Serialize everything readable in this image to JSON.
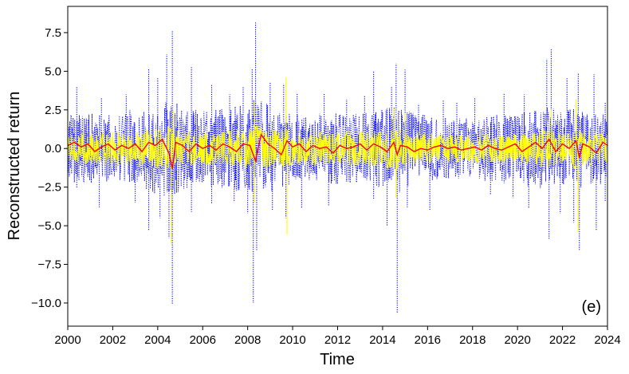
{
  "chart_data": {
    "type": "line",
    "xlabel": "Time",
    "ylabel": "Reconstructed return",
    "annotation": "(e)",
    "xlim": [
      2000,
      2024
    ],
    "ylim": [
      -11.5,
      9.2
    ],
    "x_ticks": [
      2000,
      2002,
      2004,
      2006,
      2008,
      2010,
      2012,
      2014,
      2016,
      2018,
      2020,
      2022,
      2024
    ],
    "x_tick_labels": [
      "2000",
      "2002",
      "2004",
      "2006",
      "2008",
      "2010",
      "2012",
      "2014",
      "2016",
      "2018",
      "2020",
      "2022",
      "2024"
    ],
    "y_ticks": [
      -10.0,
      -7.5,
      -5.0,
      -2.5,
      0.0,
      2.5,
      5.0,
      7.5
    ],
    "y_tick_labels": [
      "−10.0",
      "−7.5",
      "−5.0",
      "−2.5",
      "0.0",
      "2.5",
      "5.0",
      "7.5"
    ],
    "grid": false,
    "series": [
      {
        "color": "#0000ff",
        "style": "dotted",
        "envelope": {
          "x": [
            2000.0,
            2001.0,
            2002.0,
            2003.0,
            2004.0,
            2004.6,
            2005.0,
            2006.0,
            2007.0,
            2008.0,
            2008.3,
            2009.0,
            2009.7,
            2010.0,
            2011.0,
            2012.0,
            2013.0,
            2014.0,
            2014.6,
            2015.0,
            2016.0,
            2017.0,
            2018.0,
            2019.0,
            2020.0,
            2021.4,
            2022.0,
            2022.7,
            2023.0,
            2024.0
          ],
          "upper": [
            2.2,
            2.4,
            2.2,
            2.6,
            3.0,
            3.2,
            2.8,
            2.4,
            2.6,
            3.0,
            3.4,
            2.8,
            2.6,
            2.2,
            2.3,
            2.3,
            2.2,
            2.6,
            3.0,
            2.5,
            2.2,
            2.0,
            2.0,
            2.2,
            2.3,
            2.8,
            2.4,
            2.7,
            2.3,
            2.2
          ],
          "lower": [
            -2.2,
            -2.4,
            -2.2,
            -2.5,
            -3.0,
            -3.3,
            -2.8,
            -2.4,
            -2.6,
            -3.0,
            -3.5,
            -2.8,
            -2.6,
            -2.2,
            -2.2,
            -2.3,
            -2.2,
            -2.6,
            -3.1,
            -2.5,
            -2.1,
            -2.0,
            -2.0,
            -2.2,
            -2.3,
            -2.8,
            -2.5,
            -2.8,
            -2.4,
            -2.3
          ]
        },
        "spikes": [
          {
            "x": 2000.4,
            "y": 4.0
          },
          {
            "x": 2000.4,
            "y": -2.6
          },
          {
            "x": 2001.5,
            "y": 3.3
          },
          {
            "x": 2001.4,
            "y": -3.8
          },
          {
            "x": 2002.6,
            "y": 3.5
          },
          {
            "x": 2003.0,
            "y": -3.5
          },
          {
            "x": 2003.6,
            "y": 5.2
          },
          {
            "x": 2003.6,
            "y": -5.3
          },
          {
            "x": 2004.0,
            "y": 4.6
          },
          {
            "x": 2004.1,
            "y": -4.5
          },
          {
            "x": 2004.4,
            "y": 6.1
          },
          {
            "x": 2004.5,
            "y": -5.8
          },
          {
            "x": 2004.65,
            "y": 7.6
          },
          {
            "x": 2004.65,
            "y": -10.1
          },
          {
            "x": 2005.5,
            "y": 5.3
          },
          {
            "x": 2005.5,
            "y": -4.1
          },
          {
            "x": 2006.4,
            "y": 4.1
          },
          {
            "x": 2006.4,
            "y": -3.6
          },
          {
            "x": 2007.2,
            "y": 3.5
          },
          {
            "x": 2007.4,
            "y": -3.4
          },
          {
            "x": 2007.8,
            "y": 4.0
          },
          {
            "x": 2008.0,
            "y": -4.2
          },
          {
            "x": 2008.2,
            "y": 5.2
          },
          {
            "x": 2008.25,
            "y": -10.0
          },
          {
            "x": 2008.35,
            "y": 8.2
          },
          {
            "x": 2008.4,
            "y": -6.6
          },
          {
            "x": 2009.0,
            "y": 4.3
          },
          {
            "x": 2009.1,
            "y": -4.0
          },
          {
            "x": 2009.6,
            "y": 4.2
          },
          {
            "x": 2009.7,
            "y": -4.5
          },
          {
            "x": 2010.2,
            "y": 3.6
          },
          {
            "x": 2010.4,
            "y": -3.9
          },
          {
            "x": 2011.4,
            "y": 3.6
          },
          {
            "x": 2011.6,
            "y": -3.7
          },
          {
            "x": 2012.4,
            "y": 3.2
          },
          {
            "x": 2013.2,
            "y": 3.4
          },
          {
            "x": 2013.6,
            "y": 5.0
          },
          {
            "x": 2013.6,
            "y": -3.3
          },
          {
            "x": 2014.2,
            "y": -5.0
          },
          {
            "x": 2014.4,
            "y": 4.0
          },
          {
            "x": 2014.6,
            "y": 5.5
          },
          {
            "x": 2014.65,
            "y": -10.7
          },
          {
            "x": 2015.0,
            "y": 5.1
          },
          {
            "x": 2015.1,
            "y": -3.8
          },
          {
            "x": 2015.6,
            "y": 2.9
          },
          {
            "x": 2016.1,
            "y": -4.0
          },
          {
            "x": 2016.7,
            "y": 3.1
          },
          {
            "x": 2017.3,
            "y": 3.0
          },
          {
            "x": 2018.1,
            "y": 3.3
          },
          {
            "x": 2018.8,
            "y": -3.0
          },
          {
            "x": 2019.4,
            "y": 3.6
          },
          {
            "x": 2019.8,
            "y": -3.2
          },
          {
            "x": 2020.3,
            "y": 3.5
          },
          {
            "x": 2020.5,
            "y": -3.9
          },
          {
            "x": 2021.3,
            "y": 5.8
          },
          {
            "x": 2021.4,
            "y": -5.9
          },
          {
            "x": 2021.5,
            "y": 6.5
          },
          {
            "x": 2021.9,
            "y": -4.2
          },
          {
            "x": 2022.2,
            "y": 4.6
          },
          {
            "x": 2022.5,
            "y": -4.8
          },
          {
            "x": 2022.7,
            "y": 4.9
          },
          {
            "x": 2022.75,
            "y": -6.6
          },
          {
            "x": 2023.4,
            "y": 4.8
          },
          {
            "x": 2023.5,
            "y": -5.3
          },
          {
            "x": 2023.9,
            "y": 3.0
          },
          {
            "x": 2023.9,
            "y": -3.4
          }
        ]
      },
      {
        "color": "#ffff00",
        "style": "solid",
        "envelope": {
          "x": [
            2000.0,
            2002.0,
            2004.0,
            2004.6,
            2005.0,
            2006.0,
            2008.0,
            2008.3,
            2009.0,
            2009.7,
            2010.0,
            2012.0,
            2014.0,
            2014.6,
            2015.0,
            2016.0,
            2018.0,
            2020.0,
            2021.4,
            2022.0,
            2022.7,
            2023.0,
            2024.0
          ],
          "upper": [
            1.0,
            1.1,
            1.3,
            1.5,
            1.2,
            1.1,
            1.3,
            1.6,
            1.3,
            1.3,
            1.1,
            1.1,
            1.2,
            1.4,
            1.2,
            1.0,
            0.9,
            1.0,
            1.3,
            1.1,
            1.3,
            1.1,
            1.0
          ],
          "lower": [
            -1.0,
            -1.1,
            -1.3,
            -1.6,
            -1.2,
            -1.1,
            -1.3,
            -1.7,
            -1.3,
            -1.3,
            -1.1,
            -1.1,
            -1.2,
            -1.5,
            -1.2,
            -1.0,
            -0.9,
            -1.0,
            -1.3,
            -1.1,
            -1.4,
            -1.1,
            -1.0
          ]
        },
        "spikes": [
          {
            "x": 2004.6,
            "y": -6.2
          },
          {
            "x": 2004.7,
            "y": 2.5
          },
          {
            "x": 2008.3,
            "y": 3.0
          },
          {
            "x": 2008.3,
            "y": -3.5
          },
          {
            "x": 2009.7,
            "y": 4.6
          },
          {
            "x": 2009.75,
            "y": -5.6
          },
          {
            "x": 2014.5,
            "y": 2.6
          },
          {
            "x": 2014.6,
            "y": -3.2
          },
          {
            "x": 2015.0,
            "y": 2.3
          },
          {
            "x": 2021.5,
            "y": 2.5
          },
          {
            "x": 2022.6,
            "y": 3.2
          },
          {
            "x": 2022.7,
            "y": -5.4
          }
        ]
      },
      {
        "color": "#ff0000",
        "style": "solid",
        "x": [
          2000.0,
          2000.3,
          2000.6,
          2000.9,
          2001.2,
          2001.5,
          2001.8,
          2002.1,
          2002.4,
          2002.7,
          2003.0,
          2003.3,
          2003.6,
          2003.9,
          2004.2,
          2004.5,
          2004.65,
          2004.8,
          2005.1,
          2005.4,
          2005.7,
          2006.0,
          2006.3,
          2006.6,
          2006.9,
          2007.2,
          2007.5,
          2007.8,
          2008.1,
          2008.35,
          2008.6,
          2008.9,
          2009.2,
          2009.5,
          2009.75,
          2010.0,
          2010.3,
          2010.6,
          2010.9,
          2011.2,
          2011.5,
          2011.8,
          2012.1,
          2012.4,
          2012.7,
          2013.0,
          2013.3,
          2013.6,
          2013.9,
          2014.2,
          2014.5,
          2014.65,
          2014.8,
          2015.1,
          2015.4,
          2015.7,
          2016.0,
          2016.3,
          2016.6,
          2016.9,
          2017.2,
          2017.5,
          2017.8,
          2018.1,
          2018.4,
          2018.7,
          2019.0,
          2019.3,
          2019.6,
          2019.9,
          2020.2,
          2020.5,
          2020.8,
          2021.1,
          2021.4,
          2021.7,
          2022.0,
          2022.3,
          2022.6,
          2022.75,
          2022.9,
          2023.2,
          2023.5,
          2023.8,
          2024.0
        ],
        "y": [
          0.2,
          0.4,
          0.1,
          0.3,
          -0.2,
          0.1,
          0.3,
          -0.1,
          0.2,
          0.0,
          0.3,
          -0.2,
          0.4,
          0.2,
          0.6,
          -0.3,
          -1.3,
          0.4,
          0.2,
          -0.2,
          0.3,
          0.0,
          0.2,
          -0.1,
          0.3,
          0.1,
          -0.2,
          0.3,
          0.2,
          -0.8,
          0.9,
          0.3,
          0.0,
          -0.4,
          0.5,
          0.1,
          0.3,
          -0.2,
          0.2,
          0.0,
          0.1,
          -0.3,
          0.2,
          0.0,
          0.1,
          0.3,
          -0.1,
          0.3,
          0.1,
          -0.2,
          0.4,
          -0.4,
          0.2,
          0.1,
          -0.2,
          0.0,
          -0.1,
          0.1,
          0.2,
          0.0,
          0.1,
          -0.1,
          0.0,
          0.1,
          -0.1,
          0.2,
          0.0,
          -0.1,
          0.1,
          0.3,
          -0.2,
          0.1,
          0.4,
          0.0,
          0.6,
          -0.2,
          0.3,
          0.0,
          0.5,
          -0.6,
          0.3,
          0.1,
          -0.3,
          0.4,
          0.2
        ]
      }
    ]
  }
}
